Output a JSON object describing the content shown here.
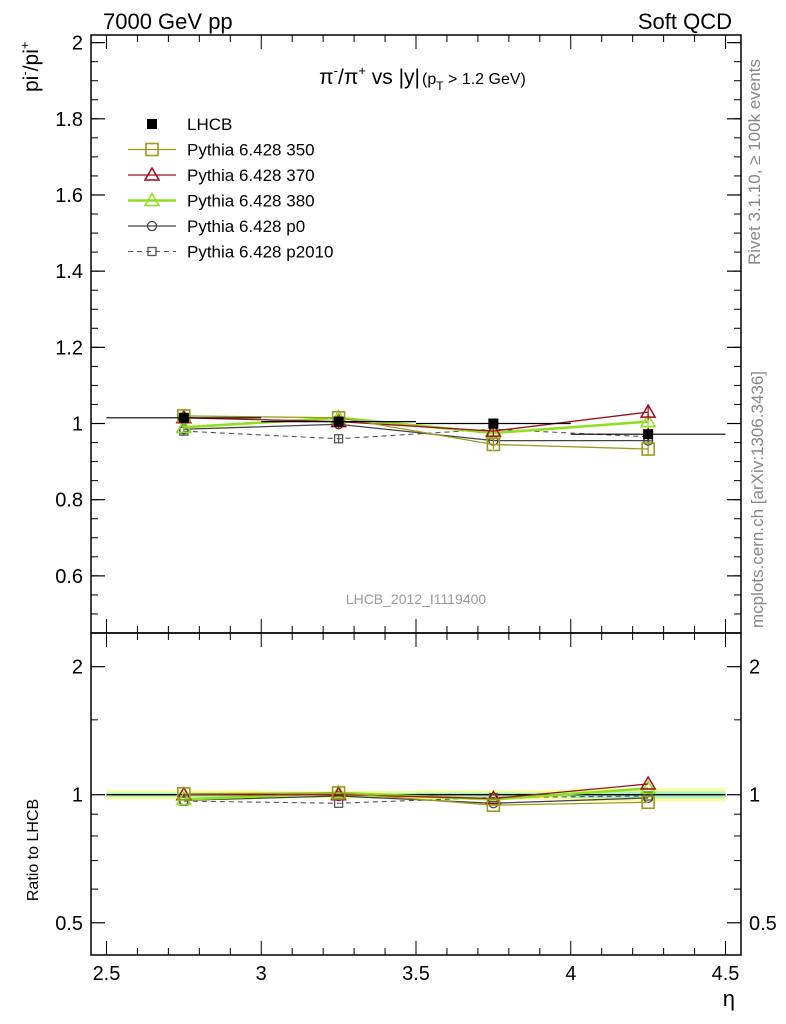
{
  "header": {
    "left": "7000 GeV pp",
    "right": "Soft QCD"
  },
  "side_labels": {
    "rivet": "Rivet 3.1.10, ≥ 100k events",
    "mcplots": "mcplots.cern.ch [arXiv:1306.3436]"
  },
  "watermark": "LHCB_2012_I1119400",
  "colors": {
    "lhcb": "#000000",
    "p350": "#9a9a1e",
    "p370": "#9b0f22",
    "p380": "#8ee01e",
    "p0": "#444444",
    "p2010": "#555555",
    "band_outer": "#fbfb9a",
    "band_inner": "#a8f0c8"
  },
  "chart_data": [
    {
      "type": "line",
      "title": "π⁻/π⁺ vs |y|",
      "title_cut": "(p_T > 1.2 GeV)",
      "ylabel": "pi⁻/pi⁺",
      "xlabel": "η",
      "xlim": [
        2.45,
        4.55
      ],
      "ylim": [
        0.45,
        2.02
      ],
      "yticks": [
        0.6,
        0.8,
        1.0,
        1.2,
        1.4,
        1.6,
        1.8,
        2.0
      ],
      "ytick_labels": [
        "0.6",
        "0.8",
        "1",
        "1.2",
        "1.4",
        "1.6",
        "1.8",
        "2"
      ],
      "x": [
        2.75,
        3.25,
        3.75,
        4.25
      ],
      "x_err": 0.25,
      "legend_position": "top-left",
      "series": [
        {
          "name": "LHCB",
          "key": "lhcb",
          "marker": "filled-square",
          "values": [
            1.015,
            1.005,
            1.0,
            0.972
          ],
          "errors": [
            0.012,
            0.01,
            0.012,
            0.016
          ]
        },
        {
          "name": "Pythia 6.428 350",
          "key": "p350",
          "marker": "open-square",
          "line": "solid",
          "values": [
            1.02,
            1.015,
            0.945,
            0.933
          ],
          "errors": [
            0.01,
            0.01,
            0.012,
            0.018
          ]
        },
        {
          "name": "Pythia 6.428 370",
          "key": "p370",
          "marker": "open-triangle",
          "line": "solid",
          "values": [
            1.015,
            1.005,
            0.98,
            1.03
          ],
          "errors": [
            0.01,
            0.01,
            0.012,
            0.02
          ]
        },
        {
          "name": "Pythia 6.428 380",
          "key": "p380",
          "marker": "open-triangle",
          "line": "solid-thick",
          "values": [
            0.99,
            1.015,
            0.975,
            1.005
          ],
          "errors": [
            0.01,
            0.01,
            0.012,
            0.018
          ]
        },
        {
          "name": "Pythia 6.428 p0",
          "key": "p0",
          "marker": "open-circle",
          "line": "solid",
          "values": [
            0.985,
            0.998,
            0.955,
            0.955
          ],
          "errors": [
            0.01,
            0.01,
            0.012,
            0.018
          ]
        },
        {
          "name": "Pythia 6.428 p2010",
          "key": "p2010",
          "marker": "small-open-square",
          "line": "dashed",
          "values": [
            0.98,
            0.96,
            0.985,
            0.965
          ],
          "errors": [
            0.01,
            0.012,
            0.012,
            0.016
          ]
        }
      ]
    },
    {
      "type": "line",
      "ylabel": "Ratio to LHCB",
      "xlabel": "η",
      "xlim": [
        2.45,
        4.55
      ],
      "ylim": [
        0.42,
        2.4
      ],
      "yscale": "log",
      "yticks": [
        0.5,
        1,
        2
      ],
      "ytick_labels": [
        "0.5",
        "1",
        "2"
      ],
      "xticks": [
        2.5,
        3,
        3.5,
        4,
        4.5
      ],
      "xtick_labels": [
        "2.5",
        "3",
        "3.5",
        "4",
        "4.5"
      ],
      "x": [
        2.75,
        3.25,
        3.75,
        4.25
      ],
      "x_err": 0.25,
      "band_outer": [
        0.025,
        0.02,
        0.025,
        0.035
      ],
      "band_inner": [
        0.012,
        0.01,
        0.012,
        0.018
      ],
      "series": [
        {
          "key": "p350",
          "values": [
            1.005,
            1.01,
            0.945,
            0.96
          ]
        },
        {
          "key": "p370",
          "values": [
            1.0,
            1.0,
            0.98,
            1.06
          ]
        },
        {
          "key": "p380",
          "values": [
            0.975,
            1.01,
            0.975,
            1.035
          ]
        },
        {
          "key": "p0",
          "values": [
            0.97,
            0.993,
            0.955,
            0.983
          ]
        },
        {
          "key": "p2010",
          "values": [
            0.966,
            0.955,
            0.985,
            0.993
          ]
        }
      ]
    }
  ]
}
